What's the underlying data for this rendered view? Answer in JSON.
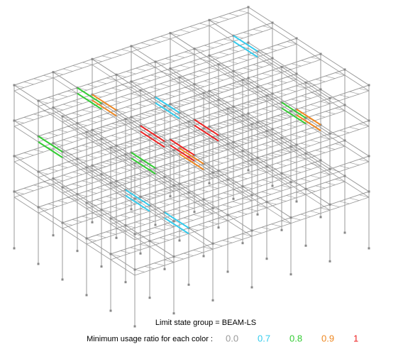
{
  "caption": "Limit state group = BEAM-LS",
  "legend": {
    "label": "Minimum usage ratio for each color :",
    "items": [
      {
        "label": "0.0",
        "color": "#999999"
      },
      {
        "label": "0.7",
        "color": "#33ccee"
      },
      {
        "label": "0.8",
        "color": "#33cc33"
      },
      {
        "label": "0.9",
        "color": "#ee8822"
      },
      {
        "label": "1",
        "color": "#ee2222"
      }
    ]
  }
}
